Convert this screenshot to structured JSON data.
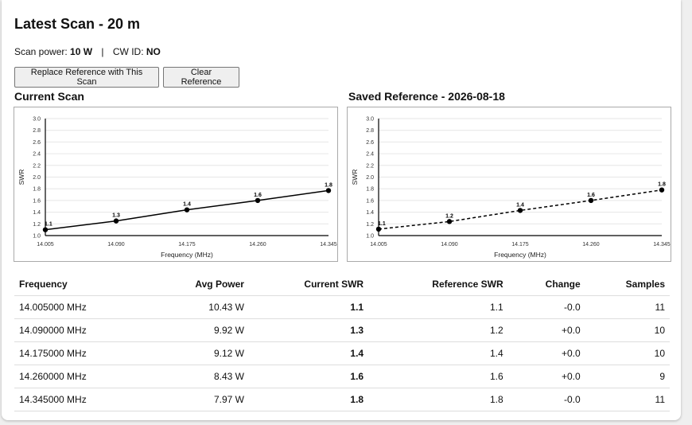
{
  "header": {
    "title": "Latest Scan - 20 m",
    "scan_power_label": "Scan power:",
    "scan_power_value": "10 W",
    "separator": "|",
    "cw_id_label": "CW ID:",
    "cw_id_value": "NO"
  },
  "buttons": {
    "replace_label": "Replace Reference with This Scan",
    "clear_label": "Clear Reference"
  },
  "chart_data": [
    {
      "type": "line",
      "title": "Current Scan",
      "xlabel": "Frequency (MHz)",
      "ylabel": "SWR",
      "x": [
        14.005,
        14.09,
        14.175,
        14.26,
        14.345
      ],
      "x_tick_labels": [
        "14.005",
        "14.090",
        "14.175",
        "14.260",
        "14.345"
      ],
      "y_tick_labels": [
        "1.0",
        "1.2",
        "1.4",
        "1.6",
        "1.8",
        "2.0",
        "2.2",
        "2.4",
        "2.6",
        "2.8",
        "3.0"
      ],
      "ylim": [
        1.0,
        3.0
      ],
      "series": [
        {
          "values": [
            1.1,
            1.25,
            1.44,
            1.6,
            1.77
          ],
          "labels": [
            "1.1",
            "1.3",
            "1.4",
            "1.6",
            "1.8"
          ],
          "style": "solid"
        }
      ],
      "grid": true
    },
    {
      "type": "line",
      "title": "Saved Reference - 2026-08-18",
      "xlabel": "Frequency (MHz)",
      "ylabel": "SWR",
      "x": [
        14.005,
        14.09,
        14.175,
        14.26,
        14.345
      ],
      "x_tick_labels": [
        "14.005",
        "14.090",
        "14.175",
        "14.260",
        "14.345"
      ],
      "y_tick_labels": [
        "1.0",
        "1.2",
        "1.4",
        "1.6",
        "1.8",
        "2.0",
        "2.2",
        "2.4",
        "2.6",
        "2.8",
        "3.0"
      ],
      "ylim": [
        1.0,
        3.0
      ],
      "series": [
        {
          "values": [
            1.11,
            1.24,
            1.43,
            1.6,
            1.78
          ],
          "labels": [
            "1.1",
            "1.2",
            "1.4",
            "1.6",
            "1.8"
          ],
          "style": "dashed"
        }
      ],
      "grid": true
    }
  ],
  "table": {
    "headers": [
      "Frequency",
      "Avg Power",
      "Current SWR",
      "Reference SWR",
      "Change",
      "Samples"
    ],
    "rows": [
      [
        "14.005000 MHz",
        "10.43 W",
        "1.1",
        "1.1",
        "-0.0",
        "11"
      ],
      [
        "14.090000 MHz",
        "9.92 W",
        "1.3",
        "1.2",
        "+0.0",
        "10"
      ],
      [
        "14.175000 MHz",
        "9.12 W",
        "1.4",
        "1.4",
        "+0.0",
        "10"
      ],
      [
        "14.260000 MHz",
        "8.43 W",
        "1.6",
        "1.6",
        "+0.0",
        "9"
      ],
      [
        "14.345000 MHz",
        "7.97 W",
        "1.8",
        "1.8",
        "-0.0",
        "11"
      ]
    ]
  }
}
